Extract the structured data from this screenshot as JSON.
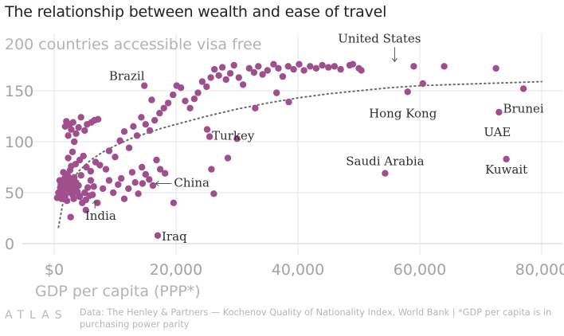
{
  "title": "The relationship between wealth and ease of travel",
  "footer": {
    "logo": "ATLAS",
    "source": "Data: The Henley & Partners — Kochenov Quality of Nationality Index, World Bank | *GDP per capita is in purchasing power parity"
  },
  "colors": {
    "point": "#9e4f8c",
    "trend": "#6b6b6b",
    "grid": "#e6e6e6",
    "axis_text": "#a3a3a3"
  },
  "chart_data": {
    "type": "scatter",
    "title": "The relationship between wealth and ease of travel",
    "ylabel": "200 countries accessible visa free",
    "xlabel": "GDP per capita (PPP*)",
    "xlim": [
      0,
      80000
    ],
    "ylim": [
      0,
      200
    ],
    "x_ticks": [
      0,
      20000,
      40000,
      60000,
      80000
    ],
    "x_tick_labels": [
      "$0",
      "20,000",
      "40,000",
      "60,000",
      "80,000"
    ],
    "y_ticks": [
      0,
      50,
      100,
      150
    ],
    "y_tick_labels": [
      "0",
      "50",
      "100",
      "150"
    ],
    "grid": true,
    "series": [
      {
        "points": [
          [
            500,
            45
          ],
          [
            700,
            50
          ],
          [
            800,
            48
          ],
          [
            900,
            62
          ],
          [
            1000,
            55
          ],
          [
            1100,
            58
          ],
          [
            1200,
            44
          ],
          [
            1300,
            52
          ],
          [
            1400,
            60
          ],
          [
            1500,
            70
          ],
          [
            1500,
            53
          ],
          [
            1600,
            56
          ],
          [
            1700,
            64
          ],
          [
            1800,
            47
          ],
          [
            1900,
            68
          ],
          [
            2000,
            59
          ],
          [
            2100,
            42
          ],
          [
            2200,
            54
          ],
          [
            2300,
            66
          ],
          [
            2400,
            57
          ],
          [
            2500,
            61
          ],
          [
            2600,
            72
          ],
          [
            2700,
            50
          ],
          [
            2800,
            63
          ],
          [
            2900,
            55
          ],
          [
            3000,
            48
          ],
          [
            3100,
            58
          ],
          [
            3200,
            44
          ],
          [
            3300,
            65
          ],
          [
            3400,
            53
          ],
          [
            3600,
            60
          ],
          [
            3800,
            51
          ],
          [
            4000,
            57
          ],
          [
            4200,
            46
          ],
          [
            4400,
            67
          ],
          [
            4600,
            40
          ],
          [
            5000,
            50
          ],
          [
            5200,
            43
          ],
          [
            5500,
            55
          ],
          [
            5800,
            47
          ],
          [
            6000,
            62
          ],
          [
            6500,
            56
          ],
          [
            1800,
            115
          ],
          [
            2000,
            120
          ],
          [
            2300,
            106
          ],
          [
            2500,
            117
          ],
          [
            2800,
            112
          ],
          [
            3100,
            119
          ],
          [
            3300,
            100
          ],
          [
            3600,
            108
          ],
          [
            4000,
            114
          ],
          [
            4400,
            124
          ],
          [
            5000,
            111
          ],
          [
            5400,
            117
          ],
          [
            6100,
            119
          ],
          [
            6600,
            121
          ],
          [
            7200,
            122
          ],
          [
            2300,
            84
          ],
          [
            2800,
            76
          ],
          [
            3000,
            90
          ],
          [
            3500,
            78
          ],
          [
            4200,
            82
          ],
          [
            4800,
            86
          ],
          [
            5300,
            75
          ],
          [
            6000,
            71
          ],
          [
            6800,
            80
          ],
          [
            7500,
            77
          ],
          [
            8500,
            73
          ],
          [
            2700,
            26
          ],
          [
            4100,
            47
          ],
          [
            5200,
            33
          ],
          [
            6300,
            48
          ],
          [
            7100,
            40
          ],
          [
            8000,
            54
          ],
          [
            9000,
            62
          ],
          [
            9700,
            50
          ],
          [
            10500,
            58
          ],
          [
            11000,
            64
          ],
          [
            11500,
            44
          ],
          [
            12200,
            54
          ],
          [
            12800,
            70
          ],
          [
            13300,
            60
          ],
          [
            13800,
            49
          ],
          [
            14400,
            75
          ],
          [
            15000,
            68
          ],
          [
            15600,
            63
          ],
          [
            16200,
            57
          ],
          [
            16800,
            82
          ],
          [
            17400,
            73
          ],
          [
            18200,
            69
          ],
          [
            9000,
            91
          ],
          [
            10000,
            85
          ],
          [
            10800,
            101
          ],
          [
            11500,
            110
          ],
          [
            12300,
            94
          ],
          [
            13000,
            115
          ],
          [
            13600,
            106
          ],
          [
            14300,
            124
          ],
          [
            15000,
            117
          ],
          [
            15700,
            111
          ],
          [
            16500,
            121
          ],
          [
            17300,
            128
          ],
          [
            18000,
            133
          ],
          [
            18700,
            138
          ],
          [
            19500,
            146
          ],
          [
            20100,
            155
          ],
          [
            20800,
            153
          ],
          [
            21500,
            140
          ],
          [
            22300,
            133
          ],
          [
            23000,
            142
          ],
          [
            23600,
            148
          ],
          [
            24300,
            159
          ],
          [
            25000,
            154
          ],
          [
            25700,
            163
          ],
          [
            26300,
            171
          ],
          [
            27000,
            165
          ],
          [
            27600,
            173
          ],
          [
            28200,
            161
          ],
          [
            28900,
            167
          ],
          [
            29500,
            175
          ],
          [
            30300,
            163
          ],
          [
            31000,
            156
          ],
          [
            32000,
            172
          ],
          [
            32800,
            168
          ],
          [
            33500,
            174
          ],
          [
            34200,
            166
          ],
          [
            35000,
            170
          ],
          [
            36000,
            176
          ],
          [
            36800,
            172
          ],
          [
            37500,
            164
          ],
          [
            38400,
            174
          ],
          [
            39300,
            171
          ],
          [
            40200,
            176
          ],
          [
            41000,
            170
          ],
          [
            42000,
            174
          ],
          [
            43000,
            172
          ],
          [
            44000,
            175
          ],
          [
            45000,
            173
          ],
          [
            46000,
            174
          ],
          [
            47000,
            171
          ],
          [
            48500,
            175
          ],
          [
            49000,
            176
          ],
          [
            50000,
            172
          ],
          [
            50400,
            170
          ],
          [
            59000,
            174
          ],
          [
            64000,
            174
          ],
          [
            72500,
            172
          ],
          [
            28500,
            84
          ],
          [
            30000,
            103
          ],
          [
            33000,
            133
          ],
          [
            36500,
            148
          ],
          [
            38500,
            139
          ],
          [
            14800,
            155
          ],
          [
            14500,
            59
          ],
          [
            17000,
            8
          ],
          [
            19600,
            40
          ],
          [
            25100,
            112
          ],
          [
            25500,
            105
          ],
          [
            25800,
            73
          ],
          [
            26200,
            49
          ],
          [
            54300,
            69
          ],
          [
            58000,
            149
          ],
          [
            60500,
            157
          ],
          [
            73000,
            129
          ],
          [
            77000,
            152
          ],
          [
            74200,
            83
          ],
          [
            16000,
            141
          ]
        ]
      }
    ],
    "trend": {
      "style": "dotted",
      "x": [
        700,
        1500,
        2500,
        4000,
        6000,
        8000,
        10000,
        12500,
        15000,
        17500,
        20000,
        25000,
        30000,
        35000,
        40000,
        45000,
        50000,
        55000,
        60000,
        65000,
        70000,
        75000,
        80000
      ],
      "y": [
        16,
        42,
        58,
        71,
        82,
        90,
        96,
        103,
        108,
        113,
        117,
        125,
        132,
        138,
        143,
        147,
        150,
        153,
        155,
        156,
        157,
        158,
        159
      ]
    },
    "annotations": [
      {
        "text": "United States",
        "x": 56000,
        "y": 174
      },
      {
        "text": "Brazil",
        "x": 14800,
        "y": 155
      },
      {
        "text": "Hong Kong",
        "x": 58000,
        "y": 149
      },
      {
        "text": "Brunei",
        "x": 77000,
        "y": 152
      },
      {
        "text": "UAE",
        "x": 73000,
        "y": 129
      },
      {
        "text": "Turkey",
        "x": 25500,
        "y": 105
      },
      {
        "text": "Saudi Arabia",
        "x": 54300,
        "y": 69
      },
      {
        "text": "Kuwait",
        "x": 74200,
        "y": 83
      },
      {
        "text": "China",
        "x": 16000,
        "y": 59
      },
      {
        "text": "India",
        "x": 6700,
        "y": 47
      },
      {
        "text": "Iraq",
        "x": 17000,
        "y": 8
      }
    ]
  }
}
